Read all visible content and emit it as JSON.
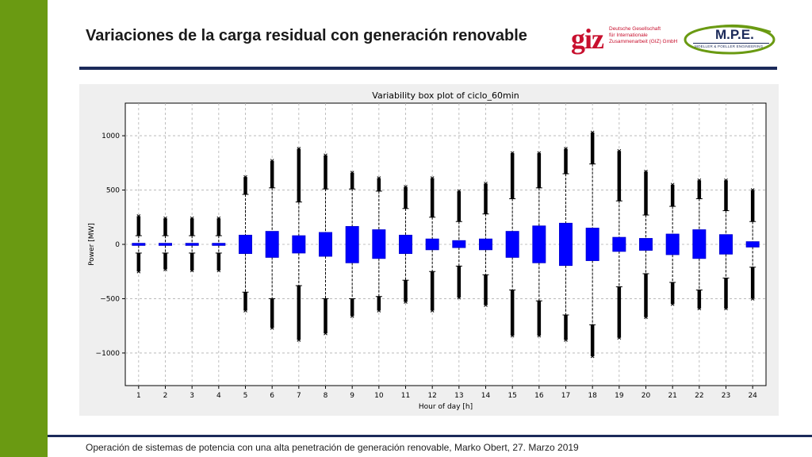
{
  "slide": {
    "title": "Variaciones de la carga residual con generación renovable",
    "footer": "Operación de sistemas de potencia con una alta penetración de generación renovable, Marko Obert, 27. Marzo 2019"
  },
  "logos": {
    "giz": {
      "mark": "giz",
      "lines": [
        "Deutsche Gesellschaft",
        "für Internationale",
        "Zusammenarbeit (GIZ) GmbH"
      ]
    },
    "mpe": {
      "name": "M.P.E.",
      "subtitle": "MOELLER & POELLER ENGINEERING"
    }
  },
  "colors": {
    "accent_green": "#6a9a12",
    "navy": "#1b2a5a",
    "giz_red": "#c8102e",
    "box_fill": "#0000ff",
    "outlier": "#000000"
  },
  "chart_data": {
    "type": "box",
    "title": "Variability box plot of ciclo_60min",
    "xlabel": "Hour of day [h]",
    "ylabel": "Power [MW]",
    "ylim": [
      -1300,
      1300
    ],
    "yticks": [
      1000,
      500,
      0,
      -500,
      -1000
    ],
    "ytick_labels": [
      "1000",
      "500",
      "0",
      "−500",
      "−1000"
    ],
    "grid": true,
    "categories": [
      "1",
      "2",
      "3",
      "4",
      "5",
      "6",
      "7",
      "8",
      "9",
      "10",
      "11",
      "12",
      "13",
      "14",
      "15",
      "16",
      "17",
      "18",
      "19",
      "20",
      "21",
      "22",
      "23",
      "24"
    ],
    "boxes": [
      {
        "hour": "1",
        "q1": -10,
        "q3": 10,
        "wlo": -80,
        "whi": 80,
        "omin": -250,
        "omax": 260
      },
      {
        "hour": "2",
        "q1": -10,
        "q3": 10,
        "wlo": -80,
        "whi": 80,
        "omin": -230,
        "omax": 240
      },
      {
        "hour": "3",
        "q1": -10,
        "q3": 10,
        "wlo": -80,
        "whi": 80,
        "omin": -240,
        "omax": 240
      },
      {
        "hour": "4",
        "q1": -10,
        "q3": 10,
        "wlo": -80,
        "whi": 80,
        "omin": -240,
        "omax": 240
      },
      {
        "hour": "5",
        "q1": -85,
        "q3": 85,
        "wlo": -440,
        "whi": 460,
        "omin": -610,
        "omax": 620
      },
      {
        "hour": "6",
        "q1": -120,
        "q3": 120,
        "wlo": -500,
        "whi": 520,
        "omin": -770,
        "omax": 770
      },
      {
        "hour": "7",
        "q1": -80,
        "q3": 80,
        "wlo": -380,
        "whi": 390,
        "omin": -880,
        "omax": 880
      },
      {
        "hour": "8",
        "q1": -110,
        "q3": 110,
        "wlo": -500,
        "whi": 510,
        "omin": -820,
        "omax": 820
      },
      {
        "hour": "9",
        "q1": -170,
        "q3": 165,
        "wlo": -500,
        "whi": 510,
        "omin": -660,
        "omax": 660
      },
      {
        "hour": "10",
        "q1": -130,
        "q3": 135,
        "wlo": -480,
        "whi": 490,
        "omin": -610,
        "omax": 610
      },
      {
        "hour": "11",
        "q1": -85,
        "q3": 85,
        "wlo": -330,
        "whi": 330,
        "omin": -530,
        "omax": 530
      },
      {
        "hour": "12",
        "q1": -50,
        "q3": 50,
        "wlo": -250,
        "whi": 250,
        "omin": -610,
        "omax": 610
      },
      {
        "hour": "13",
        "q1": -30,
        "q3": 35,
        "wlo": -200,
        "whi": 210,
        "omin": -490,
        "omax": 490
      },
      {
        "hour": "14",
        "q1": -50,
        "q3": 50,
        "wlo": -280,
        "whi": 280,
        "omin": -560,
        "omax": 560
      },
      {
        "hour": "15",
        "q1": -120,
        "q3": 120,
        "wlo": -420,
        "whi": 420,
        "omin": -840,
        "omax": 840
      },
      {
        "hour": "16",
        "q1": -170,
        "q3": 170,
        "wlo": -520,
        "whi": 520,
        "omin": -840,
        "omax": 840
      },
      {
        "hour": "17",
        "q1": -195,
        "q3": 195,
        "wlo": -650,
        "whi": 650,
        "omin": -880,
        "omax": 880
      },
      {
        "hour": "18",
        "q1": -150,
        "q3": 150,
        "wlo": -740,
        "whi": 740,
        "omin": -1030,
        "omax": 1030
      },
      {
        "hour": "19",
        "q1": -65,
        "q3": 65,
        "wlo": -390,
        "whi": 400,
        "omin": -860,
        "omax": 860
      },
      {
        "hour": "20",
        "q1": -55,
        "q3": 55,
        "wlo": -270,
        "whi": 270,
        "omin": -670,
        "omax": 670
      },
      {
        "hour": "21",
        "q1": -95,
        "q3": 95,
        "wlo": -350,
        "whi": 350,
        "omin": -550,
        "omax": 550
      },
      {
        "hour": "22",
        "q1": -130,
        "q3": 135,
        "wlo": -420,
        "whi": 420,
        "omin": -590,
        "omax": 590
      },
      {
        "hour": "23",
        "q1": -90,
        "q3": 90,
        "wlo": -310,
        "whi": 310,
        "omin": -590,
        "omax": 590
      },
      {
        "hour": "24",
        "q1": -25,
        "q3": 25,
        "wlo": -210,
        "whi": 210,
        "omin": -500,
        "omax": 500
      }
    ]
  }
}
